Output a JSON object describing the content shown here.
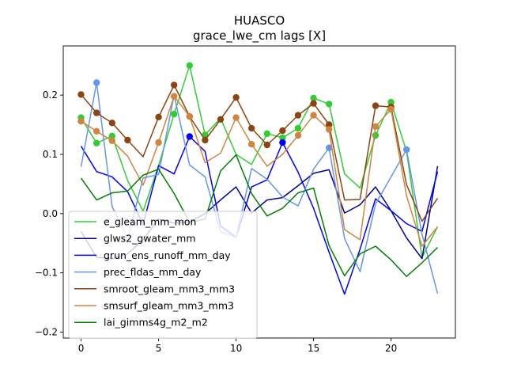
{
  "chart_data": {
    "type": "line",
    "title": "HUASCO",
    "subtitle": "grace_lwe_cm lags [X]",
    "xlabel": "",
    "ylabel": "",
    "xlim": [
      -1.15,
      24.15
    ],
    "ylim": [
      -0.21,
      0.283
    ],
    "x_ticks": [
      0,
      5,
      10,
      15,
      20
    ],
    "y_ticks": [
      -0.2,
      -0.1,
      0.0,
      0.1,
      0.2
    ],
    "x_tick_labels": [
      "0",
      "5",
      "10",
      "15",
      "20"
    ],
    "y_tick_labels": [
      "−0.2",
      "−0.1",
      "0.0",
      "0.1",
      "0.2"
    ],
    "grid": false,
    "legend_position": "lower-left",
    "x": [
      0,
      1,
      2,
      3,
      4,
      5,
      6,
      7,
      8,
      9,
      10,
      11,
      12,
      13,
      14,
      15,
      16,
      17,
      18,
      19,
      20,
      21,
      22,
      23
    ],
    "series": [
      {
        "name": "e_gleam_mm_mon",
        "color": "#32cd32",
        "values": [
          0.162,
          0.119,
          0.131,
          0.056,
          0.004,
          0.081,
          0.168,
          0.25,
          0.133,
          0.161,
          0.1,
          0.083,
          0.135,
          0.128,
          0.144,
          0.195,
          0.185,
          0.067,
          0.043,
          0.132,
          0.188,
          0.105,
          -0.074,
          -0.022
        ],
        "markers": [
          0,
          1,
          2,
          6,
          7,
          8,
          12,
          13,
          14,
          15,
          16,
          19,
          20
        ]
      },
      {
        "name": "glws2_gwater_mm",
        "color": "#00008b",
        "values": [
          -0.03,
          -0.074,
          -0.076,
          -0.068,
          -0.044,
          -0.009,
          -0.016,
          -0.014,
          0.0,
          0.023,
          0.045,
          0.001,
          0.023,
          0.027,
          0.047,
          0.068,
          0.074,
          0.001,
          0.015,
          0.045,
          0.005,
          -0.041,
          -0.076,
          0.08
        ],
        "markers": []
      },
      {
        "name": "grun_ens_runoff_mm_day",
        "color": "#0000ff",
        "values": [
          0.114,
          0.071,
          0.062,
          0.037,
          -0.018,
          0.081,
          0.067,
          0.13,
          0.105,
          -0.021,
          -0.04,
          0.045,
          0.057,
          0.12,
          0.07,
          0.009,
          -0.065,
          -0.136,
          -0.06,
          0.025,
          0.005,
          -0.017,
          -0.03,
          0.071
        ],
        "markers": [
          7,
          13
        ]
      },
      {
        "name": "prec_fldas_mm_day",
        "color": "#6495ed",
        "values": [
          0.079,
          0.221,
          0.012,
          -0.042,
          0.06,
          0.066,
          0.2,
          0.082,
          0.062,
          -0.031,
          -0.04,
          0.076,
          0.058,
          0.028,
          0.013,
          0.075,
          0.111,
          -0.042,
          -0.098,
          0.016,
          0.062,
          0.108,
          -0.035,
          -0.135
        ],
        "markers": [
          1,
          16,
          21
        ]
      },
      {
        "name": "smroot_gleam_mm3_mm3",
        "color": "#8b4513",
        "values": [
          0.201,
          0.17,
          0.153,
          0.124,
          0.096,
          0.163,
          0.217,
          0.164,
          0.124,
          0.159,
          0.196,
          0.144,
          0.116,
          0.14,
          0.166,
          0.186,
          0.15,
          0.023,
          0.024,
          0.182,
          0.18,
          0.049,
          -0.013,
          0.026
        ],
        "markers": [
          0,
          1,
          2,
          3,
          5,
          6,
          7,
          8,
          9,
          10,
          11,
          12,
          13,
          14,
          15,
          16,
          19,
          20
        ]
      },
      {
        "name": "smsurf_gleam_mm3_mm3",
        "color": "#cd853f",
        "values": [
          0.156,
          0.139,
          0.123,
          0.097,
          0.048,
          0.12,
          0.198,
          0.164,
          0.086,
          0.102,
          0.162,
          0.117,
          0.08,
          0.1,
          0.132,
          0.166,
          0.142,
          -0.027,
          -0.044,
          0.147,
          0.176,
          0.03,
          -0.055,
          -0.022
        ],
        "markers": [
          0,
          1,
          2,
          5,
          6,
          7,
          10,
          11,
          14,
          15,
          16,
          19,
          20
        ]
      },
      {
        "name": "lai_gimms4g_m2_m2",
        "color": "#008000",
        "values": [
          0.06,
          0.023,
          0.035,
          0.038,
          0.065,
          0.075,
          0.034,
          -0.015,
          -0.009,
          0.072,
          0.099,
          0.034,
          -0.004,
          0.009,
          0.035,
          0.043,
          -0.054,
          -0.105,
          -0.068,
          -0.055,
          -0.078,
          -0.106,
          -0.083,
          -0.057
        ],
        "markers": []
      }
    ]
  }
}
